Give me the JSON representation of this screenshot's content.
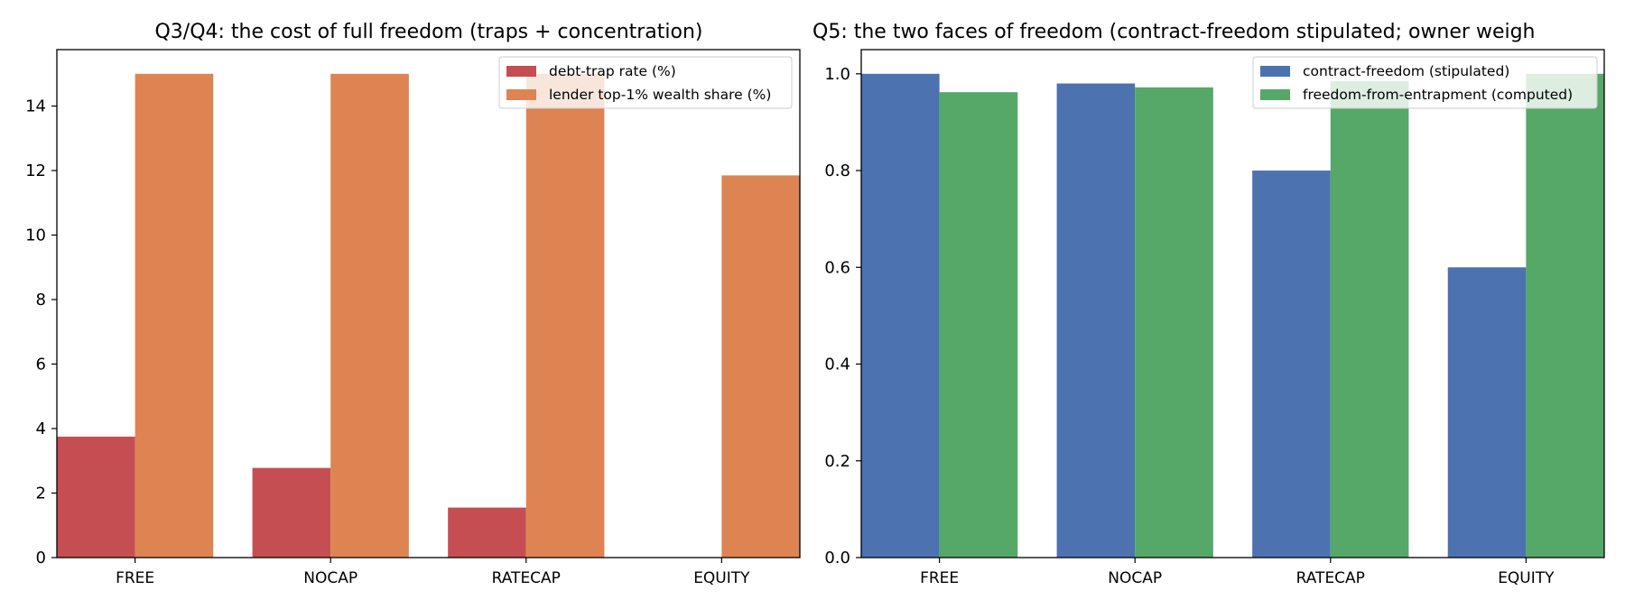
{
  "chart_data": [
    {
      "type": "bar",
      "title": "Q3/Q4: the cost of full freedom (traps + concentration)",
      "xlabel": "",
      "ylabel": "",
      "categories": [
        "FREE",
        "NOCAP",
        "RATECAP",
        "EQUITY"
      ],
      "ylim": [
        0,
        15.75
      ],
      "yticks": [
        0,
        2,
        4,
        6,
        8,
        10,
        12,
        14
      ],
      "legend": "top-right",
      "grid": false,
      "series": [
        {
          "name": "debt-trap rate (%)",
          "color": "#c44e52",
          "values": [
            3.75,
            2.78,
            1.55,
            0.0
          ]
        },
        {
          "name": "lender top-1% wealth share (%)",
          "color": "#dd8452",
          "values": [
            15.0,
            15.0,
            15.0,
            11.85
          ]
        }
      ]
    },
    {
      "type": "bar",
      "title": "Q5: the two faces of freedom (contract-freedom stipulated; owner weigh",
      "xlabel": "",
      "ylabel": "",
      "categories": [
        "FREE",
        "NOCAP",
        "RATECAP",
        "EQUITY"
      ],
      "ylim": [
        0,
        1.05
      ],
      "yticks": [
        0.0,
        0.2,
        0.4,
        0.6,
        0.8,
        1.0
      ],
      "legend": "top-right",
      "grid": false,
      "series": [
        {
          "name": "contract-freedom (stipulated)",
          "color": "#4c72b0",
          "values": [
            1.0,
            0.98,
            0.8,
            0.6
          ]
        },
        {
          "name": "freedom-from-entrapment (computed)",
          "color": "#55a868",
          "values": [
            0.962,
            0.972,
            0.985,
            1.0
          ]
        }
      ]
    }
  ]
}
